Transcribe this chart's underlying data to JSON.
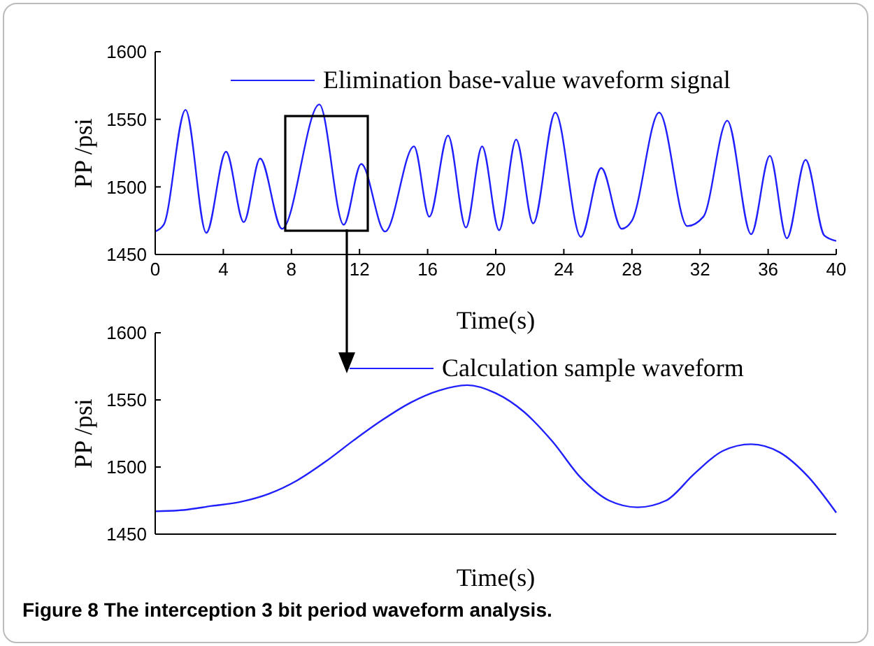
{
  "chart_data": [
    {
      "type": "line",
      "xlabel": "Time(s)",
      "ylabel": "PP /psi",
      "legend": "top",
      "xlim": [
        0,
        40
      ],
      "xticks": [
        0,
        4,
        8,
        12,
        16,
        20,
        24,
        28,
        32,
        36,
        40
      ],
      "ylim": [
        1450,
        1600
      ],
      "yticks": [
        1450,
        1500,
        1550,
        1600
      ],
      "x": [
        0,
        0.5,
        1.78,
        3.0,
        4.16,
        5.2,
        6.16,
        7.45,
        9.64,
        11.07,
        12.1,
        13.5,
        15.2,
        16.1,
        17.2,
        18.25,
        19.2,
        20.2,
        21.2,
        22.2,
        23.5,
        25.0,
        26.2,
        27.4,
        28.0,
        29.6,
        31.25,
        32.2,
        33.6,
        35.0,
        36.1,
        37.1,
        38.2,
        39.3,
        40
      ],
      "series": [
        {
          "name": "Elimination base-value waveform signal",
          "color": "#2020ff",
          "values": [
            1467,
            1472,
            1557,
            1466,
            1526,
            1474,
            1521,
            1469,
            1561,
            1472,
            1517,
            1467,
            1530,
            1478,
            1538,
            1470,
            1530,
            1468,
            1535,
            1473,
            1555,
            1463,
            1514,
            1469,
            1475,
            1555,
            1471,
            1478,
            1549,
            1465,
            1523,
            1462,
            1520,
            1464,
            1460
          ]
        }
      ]
    },
    {
      "type": "line",
      "xlabel": "Time(s)",
      "ylabel": "PP /psi",
      "legend": "top right",
      "tick_labels": "y",
      "ylim": [
        1450,
        1600
      ],
      "yticks": [
        1450,
        1500,
        1550,
        1600
      ],
      "categories": [
        null,
        null,
        null,
        null,
        null,
        null,
        null,
        null,
        null,
        null,
        null,
        null,
        null,
        null,
        null,
        null,
        null,
        null,
        null,
        null,
        null,
        null,
        null,
        null,
        null
      ],
      "series": [
        {
          "name": "Calculation sample waveform",
          "color": "#2020ff",
          "values": [
            1467,
            1468,
            1471,
            1474,
            1480,
            1490,
            1504,
            1520,
            1535,
            1548,
            1557,
            1561,
            1555,
            1541,
            1519,
            1492,
            1475,
            1470,
            1475,
            1495,
            1512,
            1517,
            1511,
            1493,
            1466
          ]
        }
      ],
      "annotations": [
        "Figure 8 The interception 3 bit period waveform analysis."
      ]
    }
  ]
}
